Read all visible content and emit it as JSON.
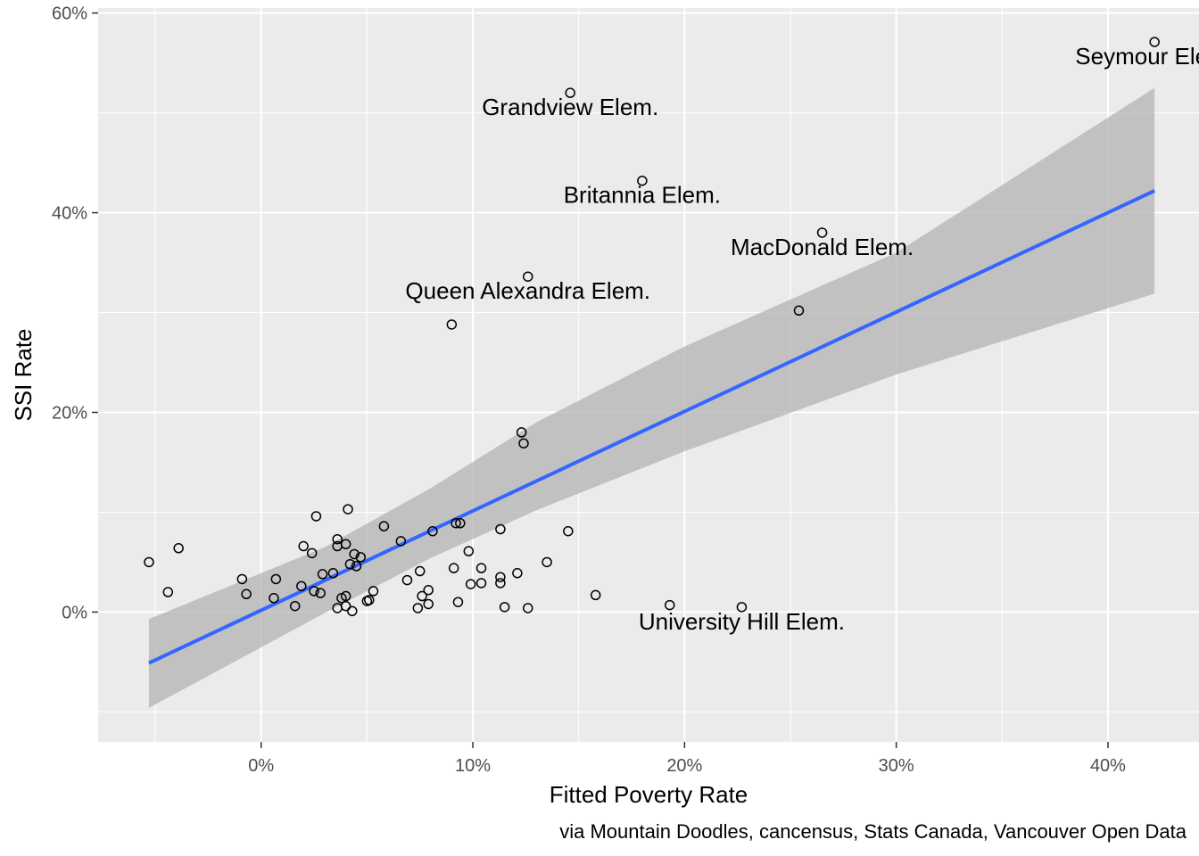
{
  "chart_data": {
    "type": "scatter",
    "title": "",
    "xlabel": "Fitted Poverty Rate",
    "ylabel": "SSI Rate",
    "caption": "via Mountain Doodles, cancensus, Stats Canada, Vancouver Open Data",
    "xlim": [
      -7.7,
      44.3
    ],
    "ylim": [
      -13.0,
      60.5
    ],
    "x_ticks": [
      0,
      10,
      20,
      30,
      40
    ],
    "x_tick_labels": [
      "0%",
      "10%",
      "20%",
      "30%",
      "40%"
    ],
    "y_ticks": [
      0,
      20,
      40,
      60
    ],
    "y_tick_labels": [
      "0%",
      "20%",
      "40%",
      "60%"
    ],
    "grid": true,
    "colors": {
      "panel": "#ebebeb",
      "grid": "#ffffff",
      "fit_line": "#3366ff",
      "ribbon": "#b3b3b3",
      "point_stroke": "#000000"
    },
    "fit": {
      "x": [
        -5.3,
        42.2
      ],
      "y": [
        -5.1,
        42.2
      ],
      "ribbon_x": [
        -5.3,
        3.0,
        8.0,
        13.0,
        20.0,
        30.0,
        42.2
      ],
      "ribbon_lower": [
        -9.6,
        -0.1,
        5.4,
        10.2,
        16.1,
        23.8,
        31.9
      ],
      "ribbon_upper": [
        -0.7,
        6.5,
        12.4,
        19.0,
        26.6,
        36.0,
        52.5
      ]
    },
    "points": [
      {
        "x": 42.2,
        "y": 57.1,
        "label": "Seymour Elem."
      },
      {
        "x": 14.6,
        "y": 52.0,
        "label": "Grandview Elem."
      },
      {
        "x": 18.0,
        "y": 43.2,
        "label": "Britannia Elem."
      },
      {
        "x": 26.5,
        "y": 38.0,
        "label": "MacDonald Elem."
      },
      {
        "x": 12.6,
        "y": 33.6,
        "label": "Queen Alexandra Elem."
      },
      {
        "x": 22.7,
        "y": 0.5,
        "label": "University Hill Elem."
      },
      {
        "x": 25.4,
        "y": 30.2
      },
      {
        "x": 9.0,
        "y": 28.8
      },
      {
        "x": 12.3,
        "y": 18.0
      },
      {
        "x": 12.4,
        "y": 16.9
      },
      {
        "x": 4.1,
        "y": 10.3
      },
      {
        "x": 2.6,
        "y": 9.6
      },
      {
        "x": 9.2,
        "y": 8.9
      },
      {
        "x": 9.4,
        "y": 8.9
      },
      {
        "x": 5.8,
        "y": 8.6
      },
      {
        "x": 11.3,
        "y": 8.3
      },
      {
        "x": 14.5,
        "y": 8.1
      },
      {
        "x": 8.1,
        "y": 8.1
      },
      {
        "x": 3.6,
        "y": 7.3
      },
      {
        "x": 6.6,
        "y": 7.1
      },
      {
        "x": 4.0,
        "y": 6.8
      },
      {
        "x": 2.0,
        "y": 6.6
      },
      {
        "x": 3.6,
        "y": 6.6
      },
      {
        "x": -3.9,
        "y": 6.4
      },
      {
        "x": 9.8,
        "y": 6.1
      },
      {
        "x": 2.4,
        "y": 5.9
      },
      {
        "x": 4.4,
        "y": 5.8
      },
      {
        "x": 4.7,
        "y": 5.5
      },
      {
        "x": -5.3,
        "y": 5.0
      },
      {
        "x": 13.5,
        "y": 5.0
      },
      {
        "x": 4.2,
        "y": 4.8
      },
      {
        "x": 4.5,
        "y": 4.6
      },
      {
        "x": 9.1,
        "y": 4.4
      },
      {
        "x": 10.4,
        "y": 4.4
      },
      {
        "x": 7.5,
        "y": 4.1
      },
      {
        "x": 12.1,
        "y": 3.9
      },
      {
        "x": 3.4,
        "y": 3.9
      },
      {
        "x": 2.9,
        "y": 3.8
      },
      {
        "x": 11.3,
        "y": 3.5
      },
      {
        "x": 0.7,
        "y": 3.3
      },
      {
        "x": -0.9,
        "y": 3.3
      },
      {
        "x": 6.9,
        "y": 3.2
      },
      {
        "x": 10.4,
        "y": 2.9
      },
      {
        "x": 11.3,
        "y": 2.9
      },
      {
        "x": 9.9,
        "y": 2.8
      },
      {
        "x": 1.9,
        "y": 2.6
      },
      {
        "x": 7.9,
        "y": 2.2
      },
      {
        "x": 2.5,
        "y": 2.1
      },
      {
        "x": 5.3,
        "y": 2.1
      },
      {
        "x": -4.4,
        "y": 2.0
      },
      {
        "x": 2.8,
        "y": 1.9
      },
      {
        "x": -0.7,
        "y": 1.8
      },
      {
        "x": 15.8,
        "y": 1.7
      },
      {
        "x": 4.0,
        "y": 1.6
      },
      {
        "x": 7.6,
        "y": 1.6
      },
      {
        "x": 0.6,
        "y": 1.4
      },
      {
        "x": 3.8,
        "y": 1.4
      },
      {
        "x": 5.1,
        "y": 1.2
      },
      {
        "x": 5.0,
        "y": 1.1
      },
      {
        "x": 9.3,
        "y": 1.0
      },
      {
        "x": 7.9,
        "y": 0.8
      },
      {
        "x": 19.3,
        "y": 0.7
      },
      {
        "x": 1.6,
        "y": 0.6
      },
      {
        "x": 4.0,
        "y": 0.6
      },
      {
        "x": 11.5,
        "y": 0.5
      },
      {
        "x": 12.6,
        "y": 0.4
      },
      {
        "x": 3.6,
        "y": 0.4
      },
      {
        "x": 7.4,
        "y": 0.4
      },
      {
        "x": 4.3,
        "y": 0.1
      }
    ]
  }
}
